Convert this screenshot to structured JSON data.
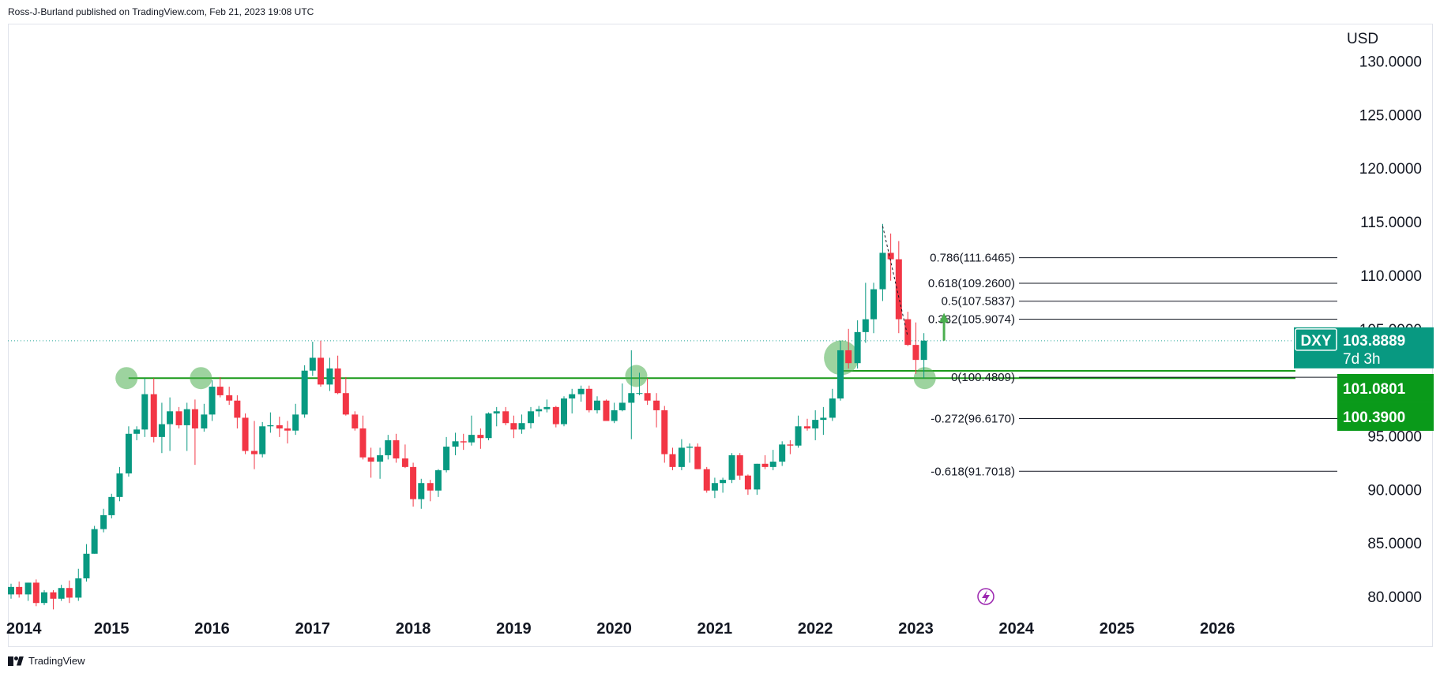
{
  "header": {
    "attribution": "Ross-J-Burland published on TradingView.com, Feb 21, 2023 19:08 UTC"
  },
  "footer": {
    "brand": "TradingView"
  },
  "colors": {
    "up": "#26a69a",
    "up_body": "#089981",
    "down": "#f23645",
    "level": "#1a9a1a",
    "highlight": "#4caf50",
    "fib": "#131722",
    "dxy_tag": "#089981",
    "support_tag": "#0a9a1a"
  },
  "chart_data": {
    "type": "candlestick",
    "symbol": "DXY",
    "interval": "monthly",
    "currency": "USD",
    "y_ticks": [
      "130.0000",
      "125.0000",
      "120.0000",
      "115.0000",
      "110.0000",
      "105.0000",
      "95.0000",
      "90.0000",
      "85.0000",
      "80.0000"
    ],
    "y_tick_values": [
      130,
      125,
      120,
      115,
      110,
      105,
      95,
      90,
      85,
      80
    ],
    "ylim": [
      77.5,
      133.5
    ],
    "x_ticks": [
      "2014",
      "2015",
      "2016",
      "2017",
      "2018",
      "2019",
      "2020",
      "2021",
      "2022",
      "2023",
      "2024",
      "2025",
      "2026"
    ],
    "x_tick_values": [
      2014,
      2015,
      2016,
      2017,
      2018,
      2019,
      2020,
      2021,
      2022,
      2023,
      2024,
      2025,
      2026
    ],
    "xlim": [
      2014.0,
      2027.2
    ],
    "last_price": {
      "label": "DXY",
      "value": "103.8889",
      "countdown": "7d 3h",
      "y": 103.8889
    },
    "support_tags": [
      {
        "value": "101.0801",
        "y": 101.0801
      },
      {
        "value": "100.3900",
        "y": 100.39
      }
    ],
    "fib_levels": [
      {
        "label": "0.786(111.6465)",
        "y": 111.6465
      },
      {
        "label": "0.618(109.2600)",
        "y": 109.26
      },
      {
        "label": "0.5(107.5837)",
        "y": 107.5837
      },
      {
        "label": "0.382(105.9074)",
        "y": 105.9074
      },
      {
        "label": "0(100.4809)",
        "y": 100.4809
      },
      {
        "label": "-0.272(96.6170)",
        "y": 96.617
      },
      {
        "label": "-0.618(91.7018)",
        "y": 91.7018
      }
    ],
    "fib_x_start": 2023.4,
    "support_line": {
      "y": 100.4,
      "x_start": 2015.2
    },
    "highlight_circles": [
      {
        "x": 2015.18,
        "y": 100.4
      },
      {
        "x": 2015.92,
        "y": 100.4
      },
      {
        "x": 2020.25,
        "y": 100.6
      },
      {
        "x": 2022.29,
        "y": 102.3
      },
      {
        "x": 2023.12,
        "y": 100.4
      }
    ],
    "projection_arrow": {
      "x": 2023.28,
      "y_from": 103.9,
      "y_to": 106.2
    },
    "candles": [
      {
        "t": 2014.0,
        "o": 80.2,
        "h": 81.2,
        "l": 79.8,
        "c": 80.9
      },
      {
        "t": 2014.08,
        "o": 80.9,
        "h": 81.4,
        "l": 79.9,
        "c": 80.2
      },
      {
        "t": 2014.17,
        "o": 80.2,
        "h": 81.3,
        "l": 79.6,
        "c": 81.3
      },
      {
        "t": 2014.25,
        "o": 81.3,
        "h": 81.6,
        "l": 79.1,
        "c": 79.4
      },
      {
        "t": 2014.33,
        "o": 79.4,
        "h": 80.6,
        "l": 79.2,
        "c": 80.4
      },
      {
        "t": 2014.42,
        "o": 80.4,
        "h": 80.6,
        "l": 78.8,
        "c": 79.8
      },
      {
        "t": 2014.5,
        "o": 79.8,
        "h": 81.1,
        "l": 79.6,
        "c": 80.8
      },
      {
        "t": 2014.58,
        "o": 80.8,
        "h": 81.5,
        "l": 79.4,
        "c": 79.9
      },
      {
        "t": 2014.67,
        "o": 79.9,
        "h": 82.6,
        "l": 79.6,
        "c": 81.7
      },
      {
        "t": 2014.75,
        "o": 81.7,
        "h": 84.9,
        "l": 81.4,
        "c": 84.0
      },
      {
        "t": 2014.83,
        "o": 84.0,
        "h": 86.6,
        "l": 84.0,
        "c": 86.3
      },
      {
        "t": 2014.92,
        "o": 86.3,
        "h": 88.2,
        "l": 86.0,
        "c": 87.6
      },
      {
        "t": 2015.0,
        "o": 87.6,
        "h": 89.6,
        "l": 87.3,
        "c": 89.3
      },
      {
        "t": 2015.08,
        "o": 89.3,
        "h": 92.1,
        "l": 88.9,
        "c": 91.5
      },
      {
        "t": 2015.17,
        "o": 91.5,
        "h": 95.9,
        "l": 91.2,
        "c": 95.2
      },
      {
        "t": 2015.25,
        "o": 95.2,
        "h": 95.9,
        "l": 94.6,
        "c": 95.6
      },
      {
        "t": 2015.33,
        "o": 95.6,
        "h": 100.4,
        "l": 94.9,
        "c": 98.9
      },
      {
        "t": 2015.42,
        "o": 98.9,
        "h": 100.4,
        "l": 94.4,
        "c": 94.9
      },
      {
        "t": 2015.5,
        "o": 94.9,
        "h": 98.1,
        "l": 93.4,
        "c": 96.1
      },
      {
        "t": 2015.58,
        "o": 96.1,
        "h": 98.6,
        "l": 93.6,
        "c": 97.3
      },
      {
        "t": 2015.67,
        "o": 97.3,
        "h": 97.7,
        "l": 95.7,
        "c": 96.0
      },
      {
        "t": 2015.75,
        "o": 96.0,
        "h": 98.1,
        "l": 93.6,
        "c": 97.5
      },
      {
        "t": 2015.83,
        "o": 97.5,
        "h": 98.4,
        "l": 92.3,
        "c": 95.7
      },
      {
        "t": 2015.92,
        "o": 95.7,
        "h": 98.0,
        "l": 95.4,
        "c": 97.0
      },
      {
        "t": 2016.0,
        "o": 97.0,
        "h": 100.2,
        "l": 96.4,
        "c": 99.6
      },
      {
        "t": 2016.08,
        "o": 99.6,
        "h": 100.5,
        "l": 98.6,
        "c": 98.8
      },
      {
        "t": 2016.17,
        "o": 98.8,
        "h": 99.6,
        "l": 97.9,
        "c": 98.3
      },
      {
        "t": 2016.25,
        "o": 98.3,
        "h": 98.8,
        "l": 95.7,
        "c": 96.7
      },
      {
        "t": 2016.33,
        "o": 96.7,
        "h": 97.1,
        "l": 93.3,
        "c": 93.6
      },
      {
        "t": 2016.42,
        "o": 93.6,
        "h": 96.4,
        "l": 91.9,
        "c": 93.3
      },
      {
        "t": 2016.5,
        "o": 93.3,
        "h": 96.3,
        "l": 93.0,
        "c": 95.9
      },
      {
        "t": 2016.58,
        "o": 95.9,
        "h": 97.2,
        "l": 95.3,
        "c": 96.0
      },
      {
        "t": 2016.67,
        "o": 96.0,
        "h": 96.8,
        "l": 94.9,
        "c": 95.7
      },
      {
        "t": 2016.75,
        "o": 95.7,
        "h": 96.4,
        "l": 94.3,
        "c": 95.5
      },
      {
        "t": 2016.83,
        "o": 95.5,
        "h": 98.0,
        "l": 95.1,
        "c": 97.0
      },
      {
        "t": 2016.92,
        "o": 97.0,
        "h": 101.6,
        "l": 96.7,
        "c": 101.1
      },
      {
        "t": 2017.0,
        "o": 101.1,
        "h": 103.8,
        "l": 100.6,
        "c": 102.3
      },
      {
        "t": 2017.08,
        "o": 102.3,
        "h": 103.9,
        "l": 99.6,
        "c": 99.8
      },
      {
        "t": 2017.17,
        "o": 99.8,
        "h": 102.3,
        "l": 99.2,
        "c": 101.3
      },
      {
        "t": 2017.25,
        "o": 101.3,
        "h": 102.5,
        "l": 98.9,
        "c": 99.0
      },
      {
        "t": 2017.33,
        "o": 99.0,
        "h": 100.5,
        "l": 96.9,
        "c": 97.0
      },
      {
        "t": 2017.42,
        "o": 97.0,
        "h": 97.3,
        "l": 95.5,
        "c": 95.7
      },
      {
        "t": 2017.5,
        "o": 95.7,
        "h": 96.9,
        "l": 92.8,
        "c": 93.0
      },
      {
        "t": 2017.58,
        "o": 93.0,
        "h": 93.9,
        "l": 91.1,
        "c": 92.6
      },
      {
        "t": 2017.67,
        "o": 92.6,
        "h": 93.9,
        "l": 91.0,
        "c": 93.2
      },
      {
        "t": 2017.75,
        "o": 93.2,
        "h": 95.1,
        "l": 92.8,
        "c": 94.6
      },
      {
        "t": 2017.83,
        "o": 94.6,
        "h": 95.2,
        "l": 92.5,
        "c": 92.9
      },
      {
        "t": 2017.92,
        "o": 92.9,
        "h": 94.2,
        "l": 92.0,
        "c": 92.1
      },
      {
        "t": 2018.0,
        "o": 92.1,
        "h": 92.5,
        "l": 88.4,
        "c": 89.1
      },
      {
        "t": 2018.08,
        "o": 89.1,
        "h": 91.0,
        "l": 88.2,
        "c": 90.6
      },
      {
        "t": 2018.17,
        "o": 90.6,
        "h": 90.9,
        "l": 88.9,
        "c": 89.9
      },
      {
        "t": 2018.25,
        "o": 89.9,
        "h": 91.9,
        "l": 89.3,
        "c": 91.8
      },
      {
        "t": 2018.33,
        "o": 91.8,
        "h": 94.9,
        "l": 91.6,
        "c": 94.0
      },
      {
        "t": 2018.42,
        "o": 94.0,
        "h": 95.3,
        "l": 93.2,
        "c": 94.5
      },
      {
        "t": 2018.5,
        "o": 94.5,
        "h": 95.2,
        "l": 93.7,
        "c": 94.4
      },
      {
        "t": 2018.58,
        "o": 94.4,
        "h": 96.9,
        "l": 94.1,
        "c": 95.1
      },
      {
        "t": 2018.67,
        "o": 95.1,
        "h": 95.7,
        "l": 93.8,
        "c": 94.8
      },
      {
        "t": 2018.75,
        "o": 94.8,
        "h": 97.2,
        "l": 94.6,
        "c": 97.1
      },
      {
        "t": 2018.83,
        "o": 97.1,
        "h": 97.7,
        "l": 95.9,
        "c": 97.3
      },
      {
        "t": 2018.92,
        "o": 97.3,
        "h": 97.7,
        "l": 96.0,
        "c": 96.2
      },
      {
        "t": 2019.0,
        "o": 96.2,
        "h": 96.9,
        "l": 94.8,
        "c": 95.6
      },
      {
        "t": 2019.08,
        "o": 95.6,
        "h": 97.0,
        "l": 95.2,
        "c": 96.2
      },
      {
        "t": 2019.17,
        "o": 96.2,
        "h": 97.7,
        "l": 95.7,
        "c": 97.3
      },
      {
        "t": 2019.25,
        "o": 97.3,
        "h": 97.8,
        "l": 96.8,
        "c": 97.5
      },
      {
        "t": 2019.33,
        "o": 97.5,
        "h": 98.4,
        "l": 97.2,
        "c": 97.7
      },
      {
        "t": 2019.42,
        "o": 97.7,
        "h": 97.8,
        "l": 95.8,
        "c": 96.1
      },
      {
        "t": 2019.5,
        "o": 96.1,
        "h": 98.7,
        "l": 95.9,
        "c": 98.5
      },
      {
        "t": 2019.58,
        "o": 98.5,
        "h": 99.4,
        "l": 97.1,
        "c": 98.9
      },
      {
        "t": 2019.67,
        "o": 98.9,
        "h": 99.7,
        "l": 98.2,
        "c": 99.4
      },
      {
        "t": 2019.75,
        "o": 99.4,
        "h": 99.7,
        "l": 97.2,
        "c": 97.4
      },
      {
        "t": 2019.83,
        "o": 97.4,
        "h": 98.7,
        "l": 97.1,
        "c": 98.3
      },
      {
        "t": 2019.92,
        "o": 98.3,
        "h": 98.4,
        "l": 96.4,
        "c": 96.4
      },
      {
        "t": 2020.0,
        "o": 96.4,
        "h": 98.1,
        "l": 96.2,
        "c": 97.4
      },
      {
        "t": 2020.08,
        "o": 97.4,
        "h": 99.9,
        "l": 97.3,
        "c": 98.1
      },
      {
        "t": 2020.17,
        "o": 98.1,
        "h": 103.0,
        "l": 94.7,
        "c": 99.0
      },
      {
        "t": 2020.25,
        "o": 99.0,
        "h": 100.9,
        "l": 98.8,
        "c": 99.0
      },
      {
        "t": 2020.33,
        "o": 99.0,
        "h": 100.4,
        "l": 97.9,
        "c": 98.3
      },
      {
        "t": 2020.42,
        "o": 98.3,
        "h": 99.0,
        "l": 95.8,
        "c": 97.4
      },
      {
        "t": 2020.5,
        "o": 97.4,
        "h": 97.8,
        "l": 92.5,
        "c": 93.3
      },
      {
        "t": 2020.58,
        "o": 93.3,
        "h": 93.9,
        "l": 91.8,
        "c": 92.1
      },
      {
        "t": 2020.67,
        "o": 92.1,
        "h": 94.7,
        "l": 91.8,
        "c": 93.9
      },
      {
        "t": 2020.75,
        "o": 93.9,
        "h": 94.3,
        "l": 92.5,
        "c": 94.0
      },
      {
        "t": 2020.83,
        "o": 94.0,
        "h": 94.3,
        "l": 91.9,
        "c": 91.9
      },
      {
        "t": 2020.92,
        "o": 91.9,
        "h": 92.1,
        "l": 89.7,
        "c": 89.9
      },
      {
        "t": 2021.0,
        "o": 89.9,
        "h": 91.1,
        "l": 89.2,
        "c": 90.6
      },
      {
        "t": 2021.08,
        "o": 90.6,
        "h": 91.1,
        "l": 89.7,
        "c": 90.9
      },
      {
        "t": 2021.17,
        "o": 90.9,
        "h": 93.4,
        "l": 90.6,
        "c": 93.2
      },
      {
        "t": 2021.25,
        "o": 93.2,
        "h": 93.4,
        "l": 90.9,
        "c": 91.3
      },
      {
        "t": 2021.33,
        "o": 91.3,
        "h": 91.4,
        "l": 89.5,
        "c": 90.0
      },
      {
        "t": 2021.42,
        "o": 90.0,
        "h": 92.4,
        "l": 89.5,
        "c": 92.4
      },
      {
        "t": 2021.5,
        "o": 92.4,
        "h": 93.2,
        "l": 91.9,
        "c": 92.1
      },
      {
        "t": 2021.58,
        "o": 92.1,
        "h": 93.7,
        "l": 91.8,
        "c": 92.6
      },
      {
        "t": 2021.67,
        "o": 92.6,
        "h": 94.5,
        "l": 92.2,
        "c": 94.2
      },
      {
        "t": 2021.75,
        "o": 94.2,
        "h": 94.6,
        "l": 93.3,
        "c": 94.1
      },
      {
        "t": 2021.83,
        "o": 94.1,
        "h": 96.9,
        "l": 93.9,
        "c": 95.9
      },
      {
        "t": 2021.92,
        "o": 95.9,
        "h": 96.6,
        "l": 95.5,
        "c": 95.7
      },
      {
        "t": 2022.0,
        "o": 95.7,
        "h": 97.4,
        "l": 94.6,
        "c": 96.5
      },
      {
        "t": 2022.08,
        "o": 96.5,
        "h": 97.7,
        "l": 95.1,
        "c": 96.7
      },
      {
        "t": 2022.17,
        "o": 96.7,
        "h": 99.4,
        "l": 96.4,
        "c": 98.5
      },
      {
        "t": 2022.25,
        "o": 98.5,
        "h": 103.9,
        "l": 98.3,
        "c": 103.0
      },
      {
        "t": 2022.33,
        "o": 103.0,
        "h": 105.0,
        "l": 101.3,
        "c": 101.8
      },
      {
        "t": 2022.42,
        "o": 101.8,
        "h": 105.8,
        "l": 101.3,
        "c": 104.7
      },
      {
        "t": 2022.5,
        "o": 104.7,
        "h": 109.3,
        "l": 103.7,
        "c": 105.9
      },
      {
        "t": 2022.58,
        "o": 105.9,
        "h": 109.3,
        "l": 104.6,
        "c": 108.7
      },
      {
        "t": 2022.67,
        "o": 108.7,
        "h": 114.8,
        "l": 107.6,
        "c": 112.1
      },
      {
        "t": 2022.75,
        "o": 112.1,
        "h": 113.9,
        "l": 109.5,
        "c": 111.5
      },
      {
        "t": 2022.83,
        "o": 111.5,
        "h": 113.2,
        "l": 104.6,
        "c": 105.9
      },
      {
        "t": 2022.92,
        "o": 105.9,
        "h": 106.6,
        "l": 103.4,
        "c": 103.5
      },
      {
        "t": 2023.0,
        "o": 103.5,
        "h": 105.6,
        "l": 100.8,
        "c": 102.1
      },
      {
        "t": 2023.08,
        "o": 102.1,
        "h": 104.6,
        "l": 100.4,
        "c": 103.9
      }
    ]
  }
}
